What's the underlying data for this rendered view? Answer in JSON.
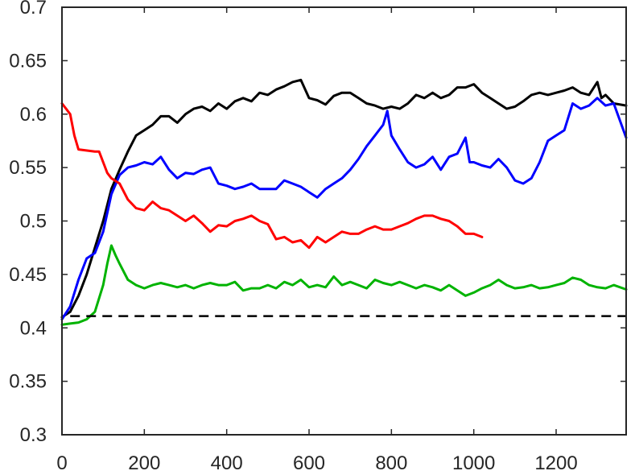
{
  "chart_data": {
    "type": "line",
    "title": "",
    "xlabel": "",
    "ylabel": "",
    "xlim": [
      0,
      1370
    ],
    "ylim": [
      0.3,
      0.7
    ],
    "x_ticks": [
      0,
      200,
      400,
      600,
      800,
      1000,
      1200
    ],
    "y_ticks": [
      0.3,
      0.35,
      0.4,
      0.45,
      0.5,
      0.55,
      0.6,
      0.65,
      0.7
    ],
    "grid": false,
    "legend": "none",
    "baseline": {
      "y": 0.411,
      "color": "#000000",
      "style": "dashed"
    },
    "series": [
      {
        "color": "#000000",
        "x": [
          0,
          20,
          40,
          60,
          80,
          100,
          120,
          140,
          160,
          180,
          200,
          220,
          240,
          260,
          280,
          300,
          320,
          340,
          360,
          380,
          400,
          420,
          440,
          460,
          480,
          500,
          520,
          540,
          560,
          580,
          600,
          620,
          640,
          660,
          680,
          700,
          720,
          740,
          760,
          780,
          800,
          820,
          840,
          860,
          880,
          900,
          920,
          940,
          960,
          980,
          1000,
          1020,
          1040,
          1060,
          1080,
          1100,
          1120,
          1140,
          1160,
          1180,
          1200,
          1220,
          1240,
          1260,
          1280,
          1300,
          1310,
          1320,
          1340,
          1370
        ],
        "y": [
          0.41,
          0.415,
          0.43,
          0.45,
          0.475,
          0.5,
          0.53,
          0.548,
          0.565,
          0.58,
          0.585,
          0.59,
          0.598,
          0.598,
          0.592,
          0.6,
          0.605,
          0.607,
          0.603,
          0.61,
          0.605,
          0.612,
          0.615,
          0.612,
          0.62,
          0.618,
          0.623,
          0.626,
          0.63,
          0.632,
          0.615,
          0.613,
          0.609,
          0.617,
          0.62,
          0.62,
          0.615,
          0.61,
          0.608,
          0.605,
          0.607,
          0.605,
          0.61,
          0.618,
          0.615,
          0.62,
          0.615,
          0.618,
          0.625,
          0.625,
          0.628,
          0.62,
          0.615,
          0.61,
          0.605,
          0.607,
          0.612,
          0.618,
          0.62,
          0.618,
          0.62,
          0.622,
          0.625,
          0.62,
          0.618,
          0.63,
          0.615,
          0.618,
          0.61,
          0.608
        ]
      },
      {
        "color": "#0000ff",
        "x": [
          0,
          20,
          40,
          60,
          80,
          100,
          120,
          140,
          160,
          180,
          200,
          220,
          240,
          260,
          280,
          300,
          320,
          340,
          360,
          380,
          400,
          420,
          440,
          460,
          480,
          500,
          520,
          540,
          560,
          580,
          600,
          620,
          640,
          660,
          680,
          700,
          720,
          740,
          760,
          780,
          790,
          800,
          820,
          840,
          860,
          880,
          900,
          920,
          940,
          960,
          980,
          990,
          1000,
          1020,
          1040,
          1060,
          1080,
          1100,
          1120,
          1140,
          1160,
          1180,
          1200,
          1220,
          1240,
          1260,
          1280,
          1300,
          1320,
          1340,
          1370
        ],
        "y": [
          0.408,
          0.42,
          0.445,
          0.465,
          0.47,
          0.49,
          0.525,
          0.543,
          0.55,
          0.552,
          0.555,
          0.553,
          0.56,
          0.548,
          0.54,
          0.545,
          0.544,
          0.548,
          0.55,
          0.535,
          0.533,
          0.53,
          0.532,
          0.535,
          0.53,
          0.53,
          0.53,
          0.538,
          0.535,
          0.532,
          0.527,
          0.522,
          0.53,
          0.535,
          0.54,
          0.548,
          0.558,
          0.57,
          0.58,
          0.59,
          0.603,
          0.58,
          0.567,
          0.555,
          0.55,
          0.553,
          0.56,
          0.548,
          0.56,
          0.563,
          0.578,
          0.555,
          0.555,
          0.552,
          0.55,
          0.558,
          0.55,
          0.538,
          0.535,
          0.54,
          0.555,
          0.575,
          0.58,
          0.585,
          0.61,
          0.605,
          0.608,
          0.615,
          0.608,
          0.61,
          0.578
        ]
      },
      {
        "color": "#ff0000",
        "x": [
          0,
          10,
          20,
          30,
          40,
          80,
          90,
          100,
          110,
          120,
          140,
          160,
          180,
          200,
          220,
          240,
          260,
          280,
          300,
          320,
          340,
          360,
          380,
          400,
          420,
          440,
          460,
          480,
          500,
          520,
          540,
          560,
          580,
          600,
          620,
          640,
          660,
          680,
          700,
          720,
          740,
          760,
          780,
          800,
          820,
          840,
          860,
          880,
          900,
          920,
          940,
          960,
          980,
          1000,
          1020
        ],
        "y": [
          0.61,
          0.605,
          0.6,
          0.58,
          0.567,
          0.565,
          0.565,
          0.555,
          0.545,
          0.54,
          0.535,
          0.52,
          0.512,
          0.51,
          0.518,
          0.512,
          0.51,
          0.505,
          0.5,
          0.505,
          0.498,
          0.49,
          0.496,
          0.495,
          0.5,
          0.502,
          0.505,
          0.5,
          0.497,
          0.483,
          0.485,
          0.48,
          0.482,
          0.475,
          0.485,
          0.48,
          0.485,
          0.49,
          0.488,
          0.488,
          0.492,
          0.495,
          0.492,
          0.492,
          0.495,
          0.498,
          0.502,
          0.505,
          0.505,
          0.502,
          0.5,
          0.495,
          0.488,
          0.488,
          0.485
        ]
      },
      {
        "color": "#00b300",
        "x": [
          0,
          20,
          40,
          60,
          80,
          100,
          110,
          120,
          130,
          140,
          160,
          180,
          200,
          220,
          240,
          260,
          280,
          300,
          320,
          340,
          360,
          380,
          400,
          420,
          440,
          460,
          480,
          500,
          520,
          540,
          560,
          580,
          600,
          620,
          640,
          660,
          680,
          700,
          720,
          740,
          760,
          780,
          800,
          820,
          840,
          860,
          880,
          900,
          920,
          940,
          960,
          980,
          1000,
          1020,
          1040,
          1060,
          1080,
          1100,
          1120,
          1140,
          1160,
          1180,
          1200,
          1220,
          1240,
          1260,
          1280,
          1300,
          1320,
          1340,
          1370
        ],
        "y": [
          0.403,
          0.404,
          0.405,
          0.408,
          0.415,
          0.44,
          0.46,
          0.477,
          0.468,
          0.46,
          0.445,
          0.44,
          0.437,
          0.44,
          0.442,
          0.44,
          0.438,
          0.44,
          0.437,
          0.44,
          0.442,
          0.44,
          0.44,
          0.443,
          0.435,
          0.437,
          0.437,
          0.44,
          0.437,
          0.443,
          0.44,
          0.445,
          0.438,
          0.44,
          0.438,
          0.448,
          0.44,
          0.443,
          0.44,
          0.437,
          0.445,
          0.442,
          0.44,
          0.443,
          0.44,
          0.437,
          0.44,
          0.438,
          0.435,
          0.44,
          0.435,
          0.43,
          0.433,
          0.437,
          0.44,
          0.445,
          0.44,
          0.437,
          0.438,
          0.44,
          0.437,
          0.438,
          0.44,
          0.442,
          0.447,
          0.445,
          0.44,
          0.438,
          0.437,
          0.44,
          0.436
        ]
      }
    ]
  }
}
